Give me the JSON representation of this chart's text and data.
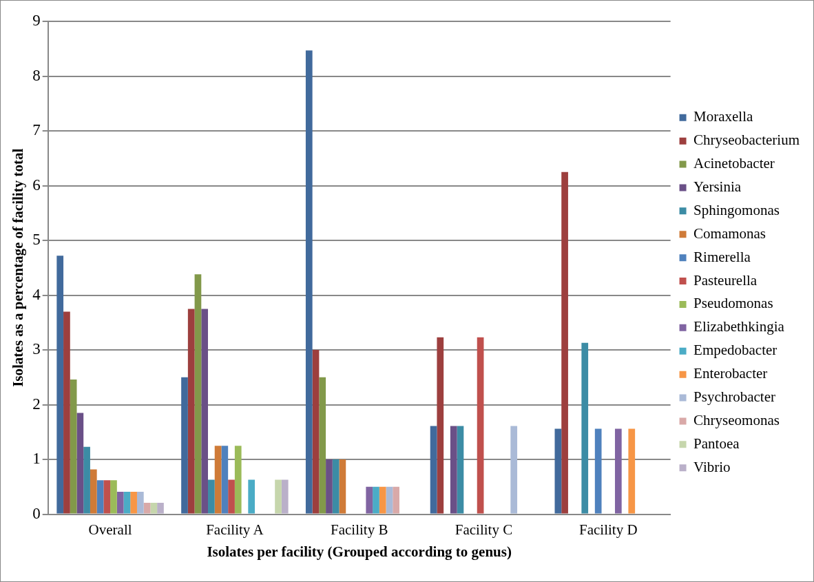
{
  "chart_data": {
    "type": "bar",
    "xlabel": "Isolates per facility (Grouped according to genus)",
    "ylabel": "Isolates as a percentage of facility total",
    "categories": [
      "Overall",
      "Facility A",
      "Facility B",
      "Facility C",
      "Facility D"
    ],
    "series": [
      {
        "name": "Moraxella",
        "color": "#416a9c",
        "values": [
          4.72,
          2.5,
          8.47,
          1.61,
          1.56
        ]
      },
      {
        "name": "Chryseobacterium",
        "color": "#9d3f3e",
        "values": [
          3.7,
          3.75,
          3.0,
          3.23,
          6.25
        ]
      },
      {
        "name": "Acinetobacter",
        "color": "#82994a",
        "values": [
          2.46,
          4.38,
          2.5,
          0,
          0
        ]
      },
      {
        "name": "Yersinia",
        "color": "#6a5087",
        "values": [
          1.85,
          3.75,
          1.0,
          1.61,
          0
        ]
      },
      {
        "name": "Sphingomonas",
        "color": "#3c8ca5",
        "values": [
          1.23,
          0.63,
          1.0,
          1.61,
          3.13
        ]
      },
      {
        "name": "Comamonas",
        "color": "#cf7b38",
        "values": [
          0.82,
          1.25,
          1.0,
          0,
          0
        ]
      },
      {
        "name": "Rimerella",
        "color": "#4f81bd",
        "values": [
          0.62,
          1.25,
          0,
          0,
          1.56
        ]
      },
      {
        "name": "Pasteurella",
        "color": "#c0504d",
        "values": [
          0.62,
          0.63,
          0,
          3.23,
          0
        ]
      },
      {
        "name": "Pseudomonas",
        "color": "#9bbb59",
        "values": [
          0.62,
          1.25,
          0,
          0,
          0
        ]
      },
      {
        "name": "Elizabethkingia",
        "color": "#8064a2",
        "values": [
          0.41,
          0,
          0.5,
          0,
          1.56
        ]
      },
      {
        "name": "Empedobacter",
        "color": "#4bacc6",
        "values": [
          0.41,
          0.63,
          0.5,
          0,
          0
        ]
      },
      {
        "name": "Enterobacter",
        "color": "#f79646",
        "values": [
          0.41,
          0,
          0.5,
          0,
          1.56
        ]
      },
      {
        "name": "Psychrobacter",
        "color": "#aabad7",
        "values": [
          0.41,
          0,
          0.5,
          1.61,
          0
        ]
      },
      {
        "name": "Chryseomonas",
        "color": "#d9a9a8",
        "values": [
          0.21,
          0,
          0.5,
          0,
          0
        ]
      },
      {
        "name": "Pantoea",
        "color": "#c6d6ac",
        "values": [
          0.21,
          0.63,
          0,
          0,
          0
        ]
      },
      {
        "name": "Vibrio",
        "color": "#bab0c9",
        "values": [
          0.21,
          0.63,
          0,
          0,
          0
        ]
      }
    ],
    "ylim": [
      0,
      9
    ],
    "yticks": [
      0,
      1,
      2,
      3,
      4,
      5,
      6,
      7,
      8,
      9
    ],
    "grid": "y",
    "legend": "right"
  }
}
